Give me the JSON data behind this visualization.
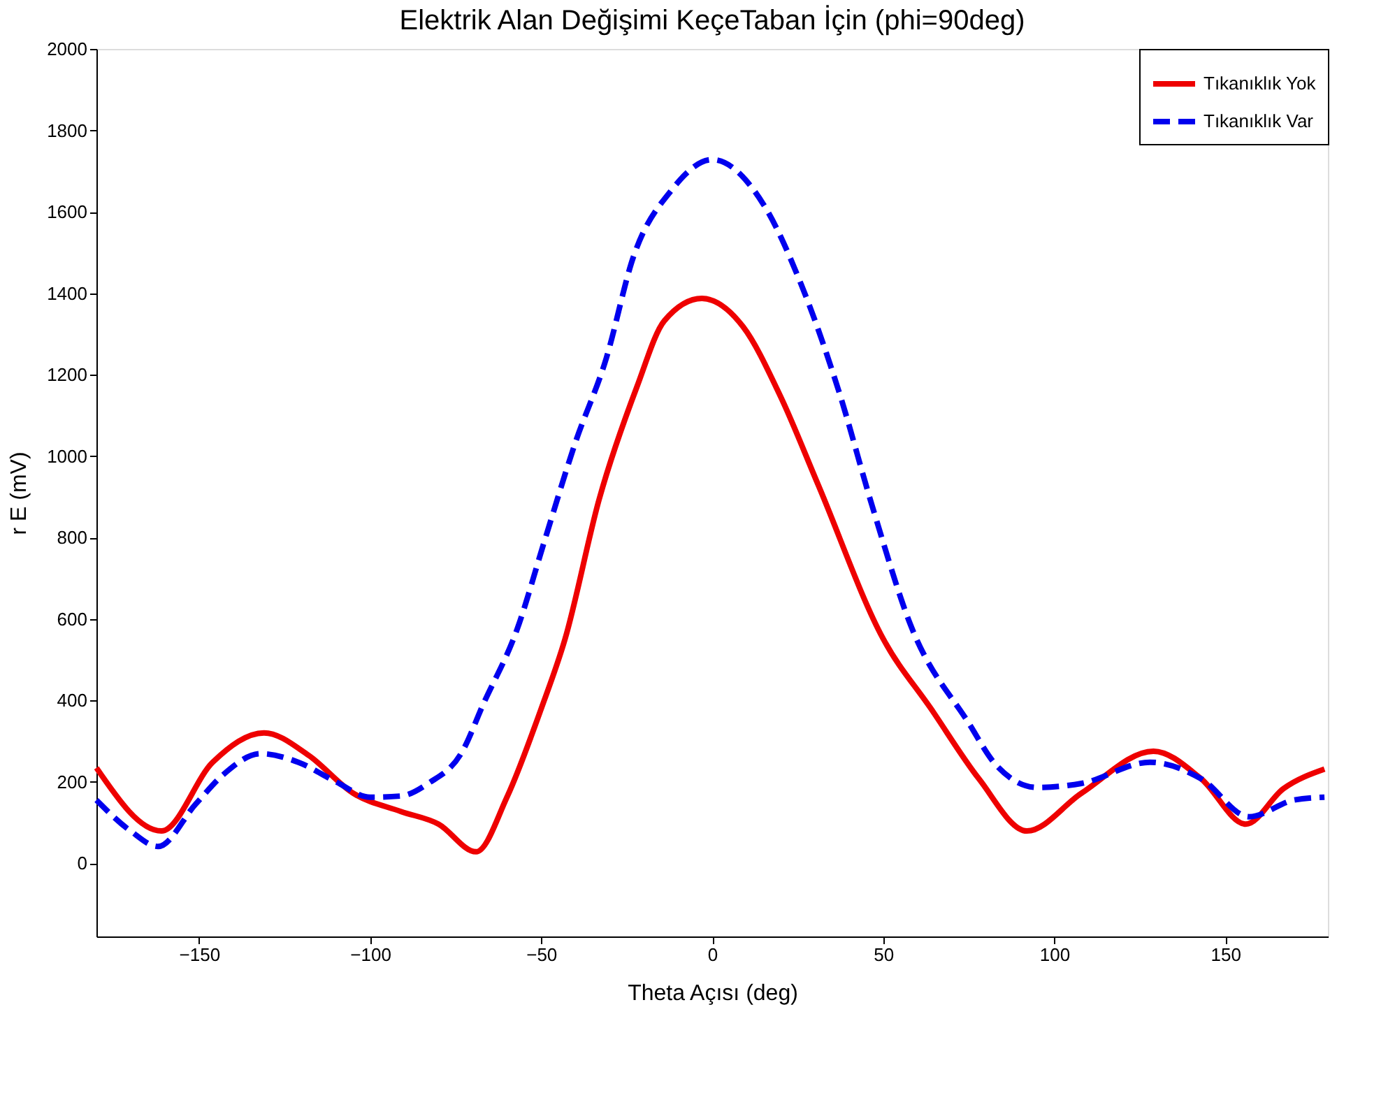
{
  "chart_data": {
    "type": "line",
    "title": "Elektrik Alan Değişimi KeçeTaban İçin (phi=90deg)",
    "xlabel": "Theta Açısı (deg)",
    "ylabel": "r E (mV)",
    "xlim": [
      -180,
      180
    ],
    "ylim": [
      -180,
      2000
    ],
    "xticks": [
      -150,
      -100,
      -50,
      0,
      50,
      100,
      150
    ],
    "yticks": [
      0,
      200,
      400,
      600,
      800,
      1000,
      1200,
      1400,
      1600,
      1800,
      2000
    ],
    "grid": false,
    "legend": "top right",
    "marker": "none",
    "series": [
      {
        "name": "Tıkanıklık Yok",
        "color": "#ee0000",
        "line_style": "solid",
        "x": [
          -180,
          -161,
          -146,
          -131,
          -118,
          -105,
          -91,
          -80,
          -69,
          -60,
          -50,
          -43,
          -33,
          -22,
          -14,
          -3,
          9,
          20,
          31,
          50,
          64,
          78,
          92,
          108,
          129,
          143,
          156,
          167,
          179
        ],
        "values": [
          234,
          79,
          248,
          320,
          265,
          172,
          127,
          96,
          28,
          162,
          379,
          551,
          895,
          1170,
          1332,
          1387,
          1318,
          1146,
          929,
          551,
          379,
          207,
          79,
          172,
          275,
          207,
          96,
          183,
          231
        ]
      },
      {
        "name": "Tıkanıklık Var",
        "color": "#0000ee",
        "line_style": "dashed",
        "x": [
          -180,
          -170,
          -162,
          -151,
          -143,
          -132,
          -121,
          -110,
          -100,
          -91,
          -83,
          -73,
          -67,
          -57,
          -49,
          -40,
          -31,
          -23,
          -12,
          0,
          15,
          26,
          37,
          47,
          58,
          75,
          83,
          95,
          108,
          128,
          143,
          157,
          170,
          179
        ],
        "values": [
          155,
          79,
          41,
          145,
          217,
          269,
          248,
          200,
          162,
          165,
          196,
          275,
          389,
          575,
          792,
          1033,
          1239,
          1490,
          1652,
          1728,
          1618,
          1422,
          1160,
          871,
          585,
          344,
          241,
          186,
          196,
          248,
          207,
          114,
          155,
          162
        ]
      }
    ]
  }
}
